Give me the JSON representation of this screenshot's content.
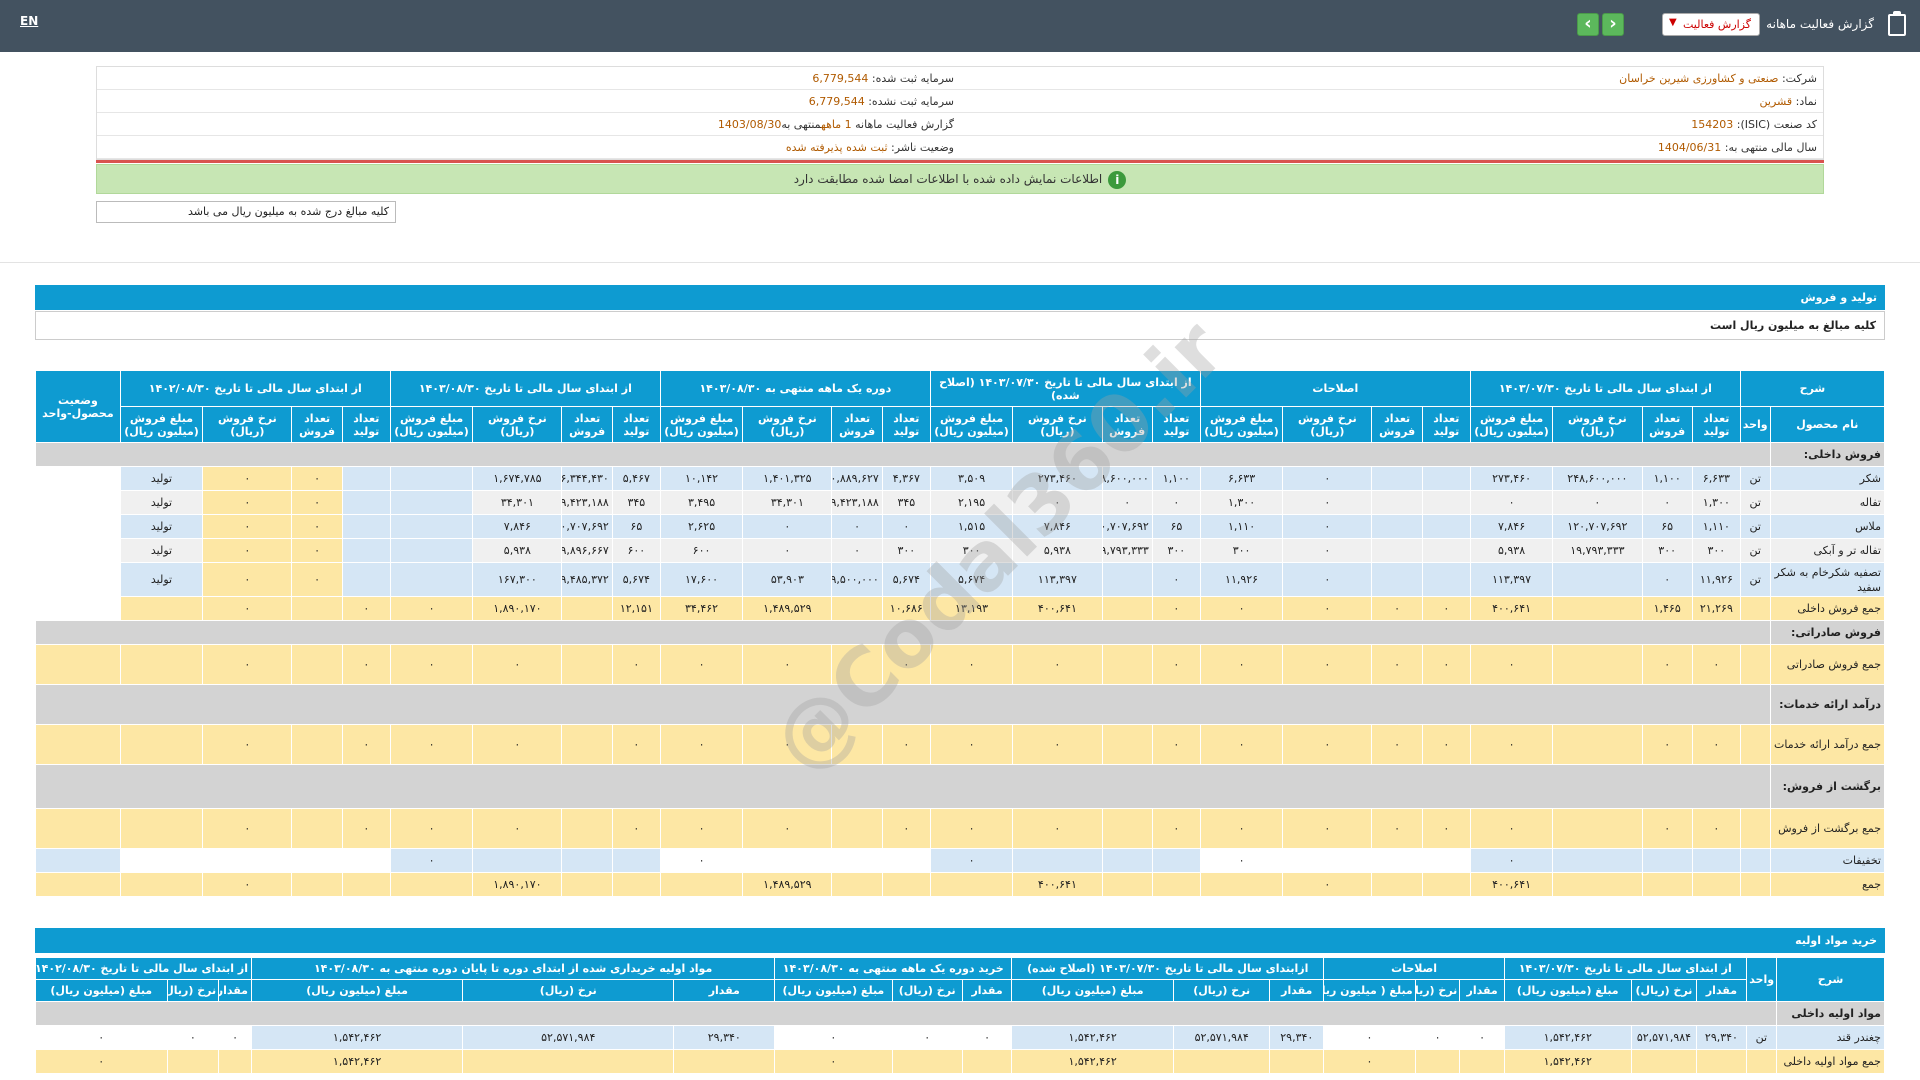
{
  "topbar": {
    "lang": "EN",
    "title": "گزارش فعالیت ماهانه",
    "select_value": "گزارش فعالیت",
    "prev": "‹",
    "next": "›"
  },
  "info": {
    "company_k": "شرکت:",
    "company_v": "صنعتی و کشاورزی شیرین خراسان",
    "cap_reg_k": "سرمایه ثبت شده:",
    "cap_reg_v": "6,779,544",
    "symbol_k": "نماد:",
    "symbol_v": "قشرین",
    "cap_unreg_k": "سرمایه ثبت نشده:",
    "cap_unreg_v": "6,779,544",
    "isic_k": "کد صنعت (ISIC):",
    "isic_v": "154203",
    "report_k": "گزارش فعالیت ماهانه",
    "report_v": "1 ماهه",
    "report_end_k": "منتهی به",
    "report_end_v": "1403/08/30",
    "fy_k": "سال مالی منتهی به:",
    "fy_v": "1404/06/31",
    "status_k": "وضعیت ناشر:",
    "status_v": "ثبت شده پذیرفته شده"
  },
  "ok_message": "اطلاعات نمایش داده شده با اطلاعات امضا شده مطابقت دارد",
  "note": "کلیه مبالغ درج شده به میلیون ریال می باشد",
  "sales": {
    "title": "تولید و فروش",
    "subtitle": "کلیه مبالغ به میلیون ریال است",
    "groups": [
      "شرح",
      "از ابتدای سال مالی تا تاریخ ۱۴۰۳/۰۷/۳۰",
      "اصلاحات",
      "از ابتدای سال مالی تا تاریخ ۱۴۰۳/۰۷/۳۰ (اصلاح شده)",
      "دوره یک ماهه منتهی به ۱۴۰۳/۰۸/۳۰",
      "از ابتدای سال مالی تا تاریخ ۱۴۰۳/۰۸/۳۰",
      "از ابتدای سال مالی تا تاریخ ۱۴۰۲/۰۸/۳۰",
      "وضعیت محصول-واحد"
    ],
    "h_name": "نام محصول",
    "h_unit": "واحد",
    "h_prod": "تعداد تولید",
    "h_sold": "تعداد فروش",
    "h_rate": "نرخ فروش (ریال)",
    "h_amt": "مبلغ فروش (میلیون ریال)",
    "sec_domestic": "فروش داخلی:",
    "rows": [
      {
        "name": "شکر",
        "unit": "تن",
        "c": [
          "۶,۶۳۳",
          "۱,۱۰۰",
          "۲۴۸,۶۰۰,۰۰۰",
          "۲۷۳,۴۶۰",
          "",
          "",
          "۰",
          "۶,۶۳۳",
          "۱,۱۰۰",
          "۲۴۸,۶۰۰,۰۰۰",
          "۲۷۳,۴۶۰",
          "۳,۵۰۹",
          "۴,۳۶۷",
          "۳۲۰,۸۸۹,۶۲۷",
          "۱,۴۰۱,۳۲۵",
          "۱۰,۱۴۲",
          "۵,۴۶۷",
          "۳۰۶,۳۴۴,۴۳۰",
          "۱,۶۷۴,۷۸۵",
          "",
          "",
          "۰",
          "۰"
        ],
        "st": "تولید",
        "cls": "r-blue"
      },
      {
        "name": "تفاله",
        "unit": "تن",
        "c": [
          "۱,۳۰۰",
          "۰",
          "۰",
          "۰",
          "",
          "",
          "۰",
          "۱,۳۰۰",
          "۰",
          "۰",
          "۰",
          "۲,۱۹۵",
          "۳۴۵",
          "۹۹,۴۲۳,۱۸۸",
          "۳۴,۳۰۱",
          "۳,۴۹۵",
          "۳۴۵",
          "۹۹,۴۲۳,۱۸۸",
          "۳۴,۳۰۱",
          "",
          "",
          "۰",
          "۰"
        ],
        "st": "تولید",
        "cls": "r-gray"
      },
      {
        "name": "ملاس",
        "unit": "تن",
        "c": [
          "۱,۱۱۰",
          "۶۵",
          "۱۲۰,۷۰۷,۶۹۲",
          "۷,۸۴۶",
          "",
          "",
          "۰",
          "۱,۱۱۰",
          "۶۵",
          "۱۲۰,۷۰۷,۶۹۲",
          "۷,۸۴۶",
          "۱,۵۱۵",
          "۰",
          "۰",
          "۰",
          "۲,۶۲۵",
          "۶۵",
          "۱۲۰,۷۰۷,۶۹۲",
          "۷,۸۴۶",
          "",
          "",
          "۰",
          "۰"
        ],
        "st": "تولید",
        "cls": "r-blue"
      },
      {
        "name": "تفاله تر و آبکی",
        "unit": "تن",
        "c": [
          "۳۰۰",
          "۳۰۰",
          "۱۹,۷۹۳,۳۳۳",
          "۵,۹۳۸",
          "",
          "",
          "۰",
          "۳۰۰",
          "۳۰۰",
          "۱۹,۷۹۳,۳۳۳",
          "۵,۹۳۸",
          "۳۰۰",
          "۳۰۰",
          "۰",
          "۰",
          "۶۰۰",
          "۶۰۰",
          "۹,۸۹۶,۶۶۷",
          "۵,۹۳۸",
          "",
          "",
          "۰",
          "۰"
        ],
        "st": "تولید",
        "cls": "r-gray"
      },
      {
        "name": "تصفیه شکرخام به شکر سفید",
        "unit": "تن",
        "c": [
          "۱۱,۹۲۶",
          "۰",
          "",
          "۱۱۳,۳۹۷",
          "",
          "",
          "۰",
          "۱۱,۹۲۶",
          "۰",
          "",
          "۱۱۳,۳۹۷",
          "۵,۶۷۴",
          "۵,۶۷۴",
          "۹,۵۰۰,۰۰۰",
          "۵۳,۹۰۳",
          "۱۷,۶۰۰",
          "۵,۶۷۴",
          "۲۹,۴۸۵,۳۷۲",
          "۱۶۷,۳۰۰",
          "",
          "",
          "۰",
          "۰"
        ],
        "st": "تولید",
        "cls": "r-blue"
      }
    ],
    "total_domestic": {
      "name": "جمع فروش داخلی",
      "c": [
        "۲۱,۲۶۹",
        "۱,۴۶۵",
        "",
        "۴۰۰,۶۴۱",
        "۰",
        "۰",
        "۰",
        "۰",
        "۰",
        "",
        "۴۰۰,۶۴۱",
        "۱۳,۱۹۳",
        "۱۰,۶۸۶",
        "",
        "۱,۴۸۹,۵۲۹",
        "۳۴,۴۶۲",
        "۱۲,۱۵۱",
        "",
        "۱,۸۹۰,۱۷۰",
        "۰",
        "۰",
        "",
        "۰"
      ]
    },
    "sec_export": "فروش صادراتی:",
    "total_export": "جمع فروش صادراتی",
    "sec_services": "درآمد ارائه خدمات:",
    "total_services": "جمع درآمد ارائه خدمات",
    "sec_returns": "برگشت از فروش:",
    "total_returns": "جمع برگشت از فروش",
    "discounts": "تخفیفات",
    "grand": {
      "name": "جمع",
      "c1": "۴۰۰,۶۴۱",
      "c2": "۴۰۰,۶۴۱",
      "c3": "۱,۴۸۹,۵۲۹",
      "c4": "۱,۸۹۰,۱۷۰",
      "c5": "۰"
    },
    "zero": "۰"
  },
  "materials": {
    "title": "خرید مواد اولیه",
    "groups": [
      "شرح",
      "واحد",
      "از ابتدای سال مالی تا تاریخ ۱۴۰۳/۰۷/۳۰",
      "اصلاحات",
      "ازابتدای سال مالی تا تاریخ ۱۴۰۳/۰۷/۳۰ (اصلاح شده)",
      "خرید دوره یک ماهه منتهی به ۱۴۰۳/۰۸/۳۰",
      "مواد اولیه خریداری شده از ابتدای دوره تا پایان دوره منتهی به ۱۴۰۳/۰۸/۳۰",
      "از ابتدای سال مالی تا تاریخ ۱۴۰۲/۰۸/۳۰"
    ],
    "h_qty": "مقدار",
    "h_rate": "نرخ (ریال)",
    "h_amt": "مبلغ (میلیون ریال)",
    "h_amt2": "مبلغ ( میلیون ریال)",
    "sec_domestic": "مواد اولیه داخلی",
    "row1": {
      "name": "چغندر قند",
      "unit": "تن",
      "c": [
        "۲۹,۳۴۰",
        "۵۲,۵۷۱,۹۸۴",
        "۱,۵۴۲,۴۶۲",
        "۰",
        "۰",
        "۰",
        "۲۹,۳۴۰",
        "۵۲,۵۷۱,۹۸۴",
        "۱,۵۴۲,۴۶۲",
        "۰",
        "۰",
        "۰",
        "۲۹,۳۴۰",
        "۵۲,۵۷۱,۹۸۴",
        "۱,۵۴۲,۴۶۲",
        "۰",
        "۰",
        "۰"
      ]
    },
    "row2": {
      "name": "جمع مواد اولیه داخلی",
      "c": [
        "",
        "",
        "۱,۵۴۲,۴۶۲",
        "",
        "",
        "۰",
        "",
        "",
        "۱,۵۴۲,۴۶۲",
        "",
        "",
        "۰",
        "",
        "",
        "۱,۵۴۲,۴۶۲",
        "",
        "",
        "۰"
      ]
    }
  },
  "watermark": "@Codal360.ir"
}
